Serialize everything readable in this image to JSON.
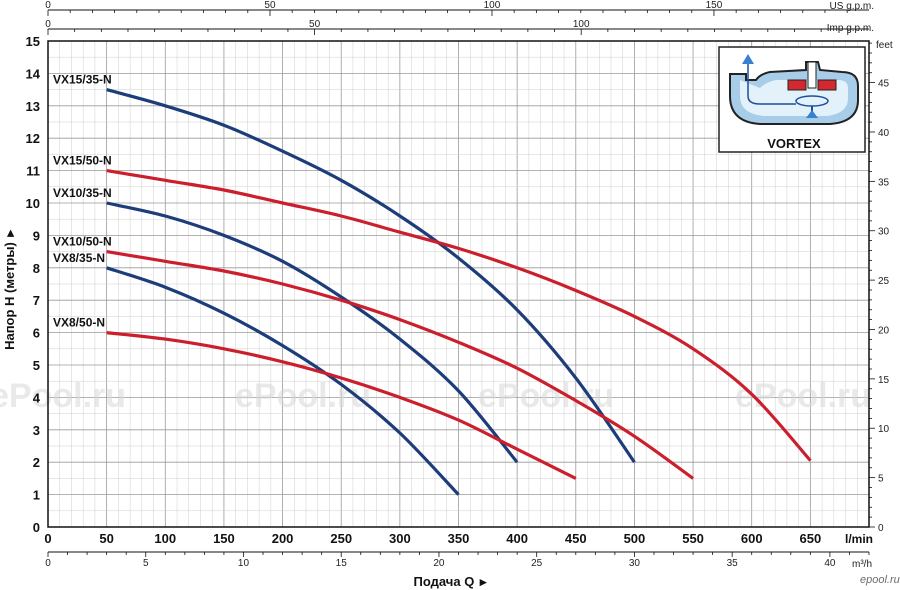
{
  "chart_data": {
    "type": "line",
    "xlabel": "Подача Q",
    "ylabel": "Напор H (метры)",
    "x_unit": "l/min",
    "x_alt_unit": "m³/h",
    "top_unit_1": "US g.p.m.",
    "top_unit_2": "Imp g.p.m.",
    "right_unit": "feet",
    "xlim": [
      0,
      700
    ],
    "ylim": [
      0,
      15
    ],
    "x_ticks": [
      0,
      50,
      100,
      150,
      200,
      250,
      300,
      350,
      400,
      450,
      500,
      550,
      600,
      650
    ],
    "x_alt_ticks": [
      0,
      5,
      10,
      15,
      20,
      25,
      30,
      35,
      40
    ],
    "y_ticks": [
      0,
      1,
      2,
      3,
      4,
      5,
      6,
      7,
      8,
      9,
      10,
      11,
      12,
      13,
      14,
      15
    ],
    "right_ticks": [
      0,
      5,
      10,
      15,
      20,
      25,
      30,
      35,
      40,
      45
    ],
    "top_us_ticks": [
      0,
      50,
      100,
      150
    ],
    "top_imp_ticks": [
      0,
      50,
      100
    ],
    "grid": true,
    "series": [
      {
        "name": "VX15/35-N",
        "color": "#1d3d7a",
        "x": [
          50,
          100,
          150,
          200,
          250,
          300,
          350,
          400,
          450,
          500
        ],
        "y": [
          13.5,
          13.0,
          12.4,
          11.6,
          10.7,
          9.6,
          8.3,
          6.7,
          4.6,
          2.0
        ]
      },
      {
        "name": "VX15/50-N",
        "color": "#cc1f2d",
        "x": [
          50,
          100,
          150,
          200,
          250,
          300,
          350,
          400,
          450,
          500,
          550,
          600,
          650
        ],
        "y": [
          11.0,
          10.7,
          10.4,
          10.0,
          9.6,
          9.1,
          8.6,
          8.0,
          7.3,
          6.5,
          5.5,
          4.1,
          2.05
        ]
      },
      {
        "name": "VX10/35-N",
        "color": "#1d3d7a",
        "x": [
          50,
          100,
          150,
          200,
          250,
          300,
          350,
          400
        ],
        "y": [
          10.0,
          9.6,
          9.0,
          8.2,
          7.1,
          5.8,
          4.2,
          2.0
        ]
      },
      {
        "name": "VX10/50-N",
        "color": "#cc1f2d",
        "x": [
          50,
          100,
          150,
          200,
          250,
          300,
          350,
          400,
          450,
          500,
          550
        ],
        "y": [
          8.5,
          8.2,
          7.9,
          7.5,
          7.0,
          6.4,
          5.7,
          4.9,
          3.9,
          2.8,
          1.5
        ]
      },
      {
        "name": "VX8/35-N",
        "color": "#1d3d7a",
        "x": [
          50,
          100,
          150,
          200,
          250,
          300,
          350
        ],
        "y": [
          8.0,
          7.4,
          6.6,
          5.6,
          4.4,
          2.9,
          1.0
        ]
      },
      {
        "name": "VX8/50-N",
        "color": "#cc1f2d",
        "x": [
          50,
          100,
          150,
          200,
          250,
          300,
          350,
          400,
          450
        ],
        "y": [
          6.0,
          5.8,
          5.5,
          5.1,
          4.6,
          4.0,
          3.3,
          2.4,
          1.5
        ]
      }
    ]
  },
  "inset": {
    "title": "VORTEX"
  },
  "watermarks": [
    "ePool.ru",
    "ePool.ru",
    "ePool.ru",
    "ePool.ru"
  ],
  "corner_logo": "epool.ru"
}
